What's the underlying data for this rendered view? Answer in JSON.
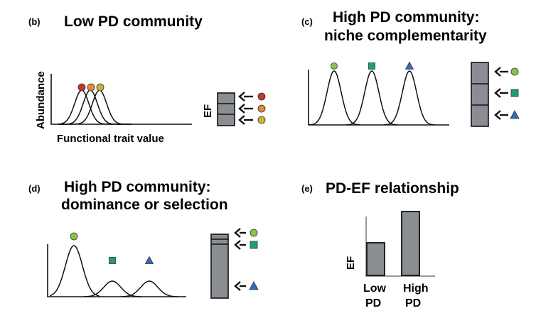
{
  "panel_b": {
    "label": "(b)",
    "title": "Low PD community",
    "ylabel": "Abundance",
    "xlabel": "Functional trait value",
    "ef_label": "EF",
    "species": [
      {
        "shape": "circle",
        "color": "#c0392b"
      },
      {
        "shape": "circle",
        "color": "#e08a3a"
      },
      {
        "shape": "circle",
        "color": "#c9b13a"
      }
    ]
  },
  "panel_c": {
    "label": "(c)",
    "title_line1": "High PD community:",
    "title_line2": "niche complementarity",
    "ef_label": "",
    "species": [
      {
        "shape": "circle",
        "color": "#8bc34a"
      },
      {
        "shape": "square",
        "color": "#1aa36a"
      },
      {
        "shape": "triangle",
        "color": "#2f6db5"
      }
    ]
  },
  "panel_d": {
    "label": "(d)",
    "title_line1": "High PD community:",
    "title_line2": "dominance or selection",
    "species": [
      {
        "shape": "circle",
        "color": "#8bc34a"
      },
      {
        "shape": "square",
        "color": "#1aa36a"
      },
      {
        "shape": "triangle",
        "color": "#2f6db5"
      }
    ]
  },
  "panel_e": {
    "label": "(e)",
    "title": "PD-EF relationship",
    "ylabel": "EF",
    "bars": [
      {
        "name_line1": "Low",
        "name_line2": "PD"
      },
      {
        "name_line1": "High",
        "name_line2": "PD"
      }
    ]
  },
  "colors": {
    "bar_fill": "#8a8e92",
    "stroke": "#111111",
    "axis_e": "#9a9a9a"
  }
}
